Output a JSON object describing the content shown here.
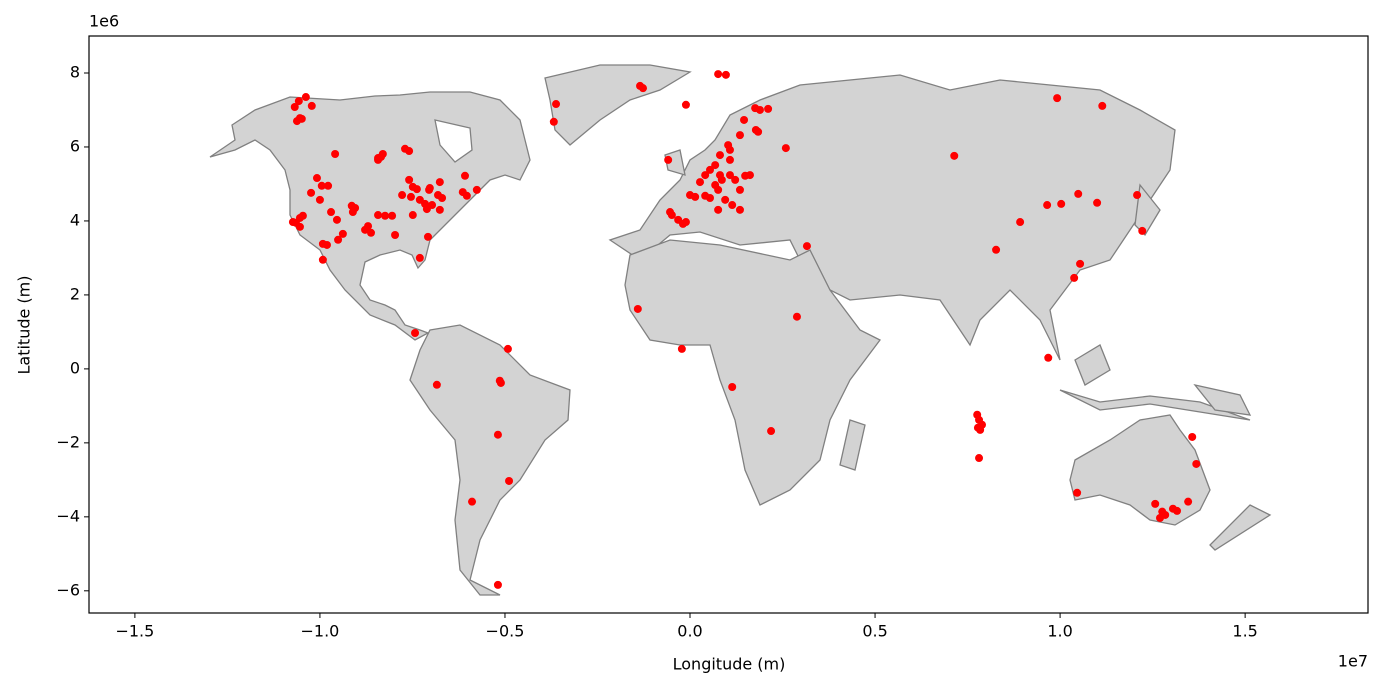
{
  "chart_data": {
    "type": "scatter",
    "xlabel": "Longitude (m)",
    "ylabel": "Latitude (m)",
    "x_offset": "1e7",
    "y_offset": "1e6",
    "color": "#ff0000",
    "xlim": [
      -1.624,
      1.832
    ],
    "ylim": [
      -6.6,
      9.0
    ],
    "xticks": [
      {
        "value": -1.5,
        "label": "−1.5"
      },
      {
        "value": -1.0,
        "label": "−1.0"
      },
      {
        "value": -0.5,
        "label": "−0.5"
      },
      {
        "value": 0,
        "label": "0.0"
      },
      0.5,
      {
        "value": 1.0,
        "label": "1.0"
      },
      1.5
    ],
    "yticks": [
      {
        "value": -6,
        "label": "−6"
      },
      {
        "value": -4,
        "label": "−4"
      },
      {
        "value": -2,
        "label": "−2"
      },
      0,
      2,
      4,
      6,
      8
    ],
    "x": [
      -1.068,
      -1.057,
      -1.038,
      -1.022,
      -1.054,
      -1.062,
      -1.049,
      -0.959,
      -1.008,
      -0.995,
      -0.978,
      -1.024,
      -1.0,
      -0.97,
      -0.954,
      -0.938,
      -0.951,
      -0.992,
      -0.981,
      -0.992,
      -1.054,
      -1.065,
      -1.046,
      -1.054,
      -1.073,
      -0.914,
      -0.911,
      -0.905,
      -0.878,
      -0.87,
      -0.862,
      -0.843,
      -0.824,
      -0.805,
      -0.797,
      -0.843,
      -0.835,
      -0.83,
      -0.843,
      -0.77,
      -0.759,
      -0.778,
      -0.759,
      -0.749,
      -0.738,
      -0.754,
      -0.749,
      -0.73,
      -0.716,
      -0.705,
      -0.697,
      -0.703,
      -0.681,
      -0.676,
      -0.711,
      -0.676,
      -0.67,
      -0.708,
      -0.73,
      -0.743,
      -0.614,
      -0.603,
      -0.576,
      -0.608,
      -0.011,
      -0.135,
      -0.127,
      0.076,
      0.097,
      -0.362,
      -0.368,
      -0.059,
      -0.049,
      -0.054,
      -0.032,
      -0.019,
      -0.011,
      0.0,
      0.014,
      0.041,
      0.054,
      0.027,
      0.041,
      0.054,
      0.068,
      0.081,
      0.068,
      0.076,
      0.086,
      0.108,
      0.095,
      0.122,
      0.135,
      0.149,
      0.162,
      0.114,
      0.135,
      0.076,
      0.108,
      0.103,
      0.135,
      0.146,
      0.176,
      0.189,
      0.211,
      0.178,
      0.184,
      0.259,
      0.081,
      0.108,
      -0.141,
      -0.022,
      0.114,
      0.289,
      0.316,
      0.219,
      0.714,
      0.992,
      1.114,
      0.892,
      0.965,
      1.003,
      1.049,
      1.1,
      1.208,
      1.222,
      0.827,
      1.054,
      1.038,
      0.968,
      0.776,
      0.781,
      0.789,
      0.778,
      0.784,
      0.781,
      1.357,
      1.368,
      1.046,
      1.257,
      1.346,
      1.305,
      1.316,
      1.276,
      1.284,
      1.27,
      -0.684,
      -0.514,
      -0.511,
      -0.519,
      -0.489,
      -0.492,
      -0.589,
      -0.519
    ],
    "values": [
      7.08,
      7.24,
      7.35,
      7.11,
      6.78,
      6.7,
      6.76,
      5.81,
      5.16,
      4.95,
      4.95,
      4.76,
      4.57,
      4.24,
      4.03,
      3.65,
      3.49,
      3.38,
      3.35,
      2.95,
      4.08,
      3.95,
      4.14,
      3.84,
      3.97,
      4.41,
      4.24,
      4.35,
      3.76,
      3.86,
      3.68,
      4.16,
      4.14,
      4.14,
      3.62,
      5.65,
      5.73,
      5.81,
      5.7,
      5.95,
      5.89,
      4.7,
      5.11,
      4.92,
      4.86,
      4.65,
      4.16,
      4.57,
      4.46,
      4.84,
      4.43,
      4.89,
      4.7,
      5.05,
      4.32,
      4.3,
      4.62,
      3.57,
      3.0,
      0.97,
      4.78,
      4.68,
      4.84,
      5.22,
      7.14,
      7.65,
      7.59,
      7.97,
      7.95,
      7.16,
      6.68,
      5.65,
      4.16,
      4.24,
      4.03,
      3.92,
      3.97,
      4.7,
      4.65,
      4.68,
      4.62,
      5.05,
      5.24,
      5.38,
      5.51,
      5.24,
      4.97,
      4.84,
      5.11,
      5.24,
      4.57,
      5.11,
      4.84,
      5.22,
      5.24,
      4.43,
      4.3,
      4.3,
      5.65,
      6.05,
      6.32,
      6.73,
      7.05,
      7.0,
      7.03,
      6.46,
      6.41,
      5.97,
      5.78,
      5.92,
      1.62,
      0.54,
      -0.49,
      1.41,
      3.32,
      -1.68,
      5.76,
      7.32,
      7.11,
      3.97,
      4.43,
      4.46,
      4.73,
      4.49,
      4.7,
      3.73,
      3.22,
      2.84,
      2.46,
      0.3,
      -1.24,
      -1.38,
      -1.51,
      -1.59,
      -1.65,
      -2.41,
      -1.84,
      -2.57,
      -3.35,
      -3.65,
      -3.59,
      -3.78,
      -3.84,
      -3.86,
      -3.95,
      -4.03,
      -0.43,
      -0.32,
      -0.38,
      -1.78,
      -3.03,
      0.54,
      -3.59,
      -5.84
    ]
  }
}
